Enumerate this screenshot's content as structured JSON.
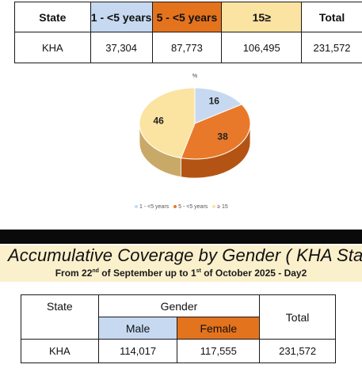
{
  "age_table": {
    "headers": [
      "State",
      "1 - <5 years",
      "5 - <5 years",
      "15≥",
      "Total"
    ],
    "header_colors": [
      "#ffffff",
      "#c6d9f1",
      "#e4731d",
      "#fbe3a2",
      "#ffffff"
    ],
    "row": [
      "KHA",
      "37,304",
      "87,773",
      "106,495",
      "231,572"
    ]
  },
  "chart_data": {
    "type": "pie",
    "title": "%",
    "categories": [
      "1 - <5 years",
      "5 - <5 years",
      "≥ 15"
    ],
    "values": [
      16,
      38,
      46
    ],
    "labels": [
      "16",
      "38",
      "46"
    ],
    "colors": [
      "#c6d9f1",
      "#e9792a",
      "#fbe3a2"
    ],
    "side_colors": [
      "#8ea5c2",
      "#b45414",
      "#c8a968"
    ],
    "three_d": true,
    "legend_position": "bottom"
  },
  "banner": {
    "title": "Accumulative Coverage by Gender ( KHA State",
    "subtitle_a": "From 22",
    "subtitle_a_sup": "nd",
    "subtitle_b": " of September  up to 1",
    "subtitle_b_sup": "st",
    "subtitle_c": " of October 2025 - Day2"
  },
  "gender_table": {
    "state_header": "State",
    "gender_header": "Gender",
    "total_header": "Total",
    "male_header": "Male",
    "female_header": "Female",
    "male_color": "#c6d9f1",
    "female_color": "#e4731d",
    "row": [
      "KHA",
      "114,017",
      "117,555",
      "231,572"
    ]
  }
}
